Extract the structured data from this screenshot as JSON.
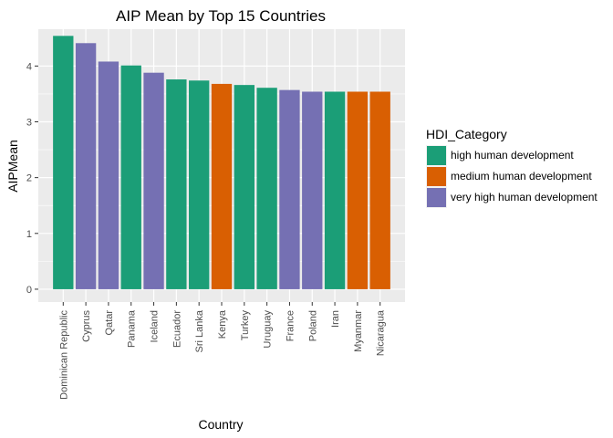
{
  "chart_data": {
    "type": "bar",
    "title": "AIP Mean by Top 15 Countries",
    "xlabel": "Country",
    "ylabel": "AIPMean",
    "ylim": [
      -0.23,
      4.66
    ],
    "yticks": [
      0,
      1,
      2,
      3,
      4
    ],
    "grid": true,
    "legend_position": "right",
    "legend_title": "HDI_Category",
    "categories": [
      "Dominican Republic",
      "Cyprus",
      "Qatar",
      "Panama",
      "Iceland",
      "Ecuador",
      "Sri Lanka",
      "Kenya",
      "Turkey",
      "Uruguay",
      "France",
      "Poland",
      "Iran",
      "Myanmar",
      "Nicaragua"
    ],
    "values": [
      4.54,
      4.41,
      4.08,
      4.01,
      3.88,
      3.76,
      3.74,
      3.68,
      3.66,
      3.61,
      3.57,
      3.54,
      3.54,
      3.54,
      3.54
    ],
    "groups": [
      "high human development",
      "very high human development",
      "very high human development",
      "high human development",
      "very high human development",
      "high human development",
      "high human development",
      "medium human development",
      "high human development",
      "high human development",
      "very high human development",
      "very high human development",
      "high human development",
      "medium human development",
      "medium human development"
    ],
    "legend": [
      {
        "name": "high human development",
        "color": "#1b9e77"
      },
      {
        "name": "medium human development",
        "color": "#d95f02"
      },
      {
        "name": "very high human development",
        "color": "#7570b3"
      }
    ],
    "panel_color": "#ebebeb",
    "grid_color": "#ffffff"
  }
}
